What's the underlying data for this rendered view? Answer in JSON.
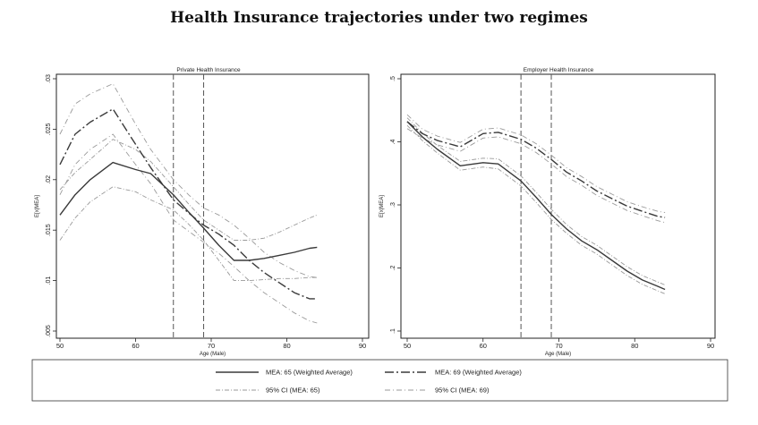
{
  "title": "Health Insurance trajectories under two regimes",
  "colors": {
    "mea65": "#3a3a3a",
    "mea69": "#3a3a3a",
    "ci65": "#9a9a9a",
    "ci69": "#9a9a9a",
    "vline": "#555555"
  },
  "chart_data": [
    {
      "type": "line",
      "title": "Private Health Insurance",
      "xlabel": "Age (Male)",
      "ylabel": "E[x|MEA]",
      "xlim": [
        50,
        90
      ],
      "ylim": [
        0.005,
        0.03
      ],
      "xticks": [
        50,
        60,
        70,
        80,
        90
      ],
      "xtick_labels": [
        "50",
        "60",
        "70",
        "80",
        "90"
      ],
      "yticks": [
        0.005,
        0.01,
        0.015,
        0.02,
        0.025,
        0.03
      ],
      "ytick_labels": [
        ".005",
        ".01",
        ".015",
        ".02",
        ".025",
        ".03"
      ],
      "vlines": [
        65,
        69
      ],
      "x": [
        50,
        52,
        54,
        57,
        60,
        62,
        65,
        67,
        69,
        71,
        73,
        75,
        77,
        79,
        81,
        83,
        84
      ],
      "series": [
        {
          "name": "MEA: 65 (Weighted Average)",
          "role": "mea65",
          "values": [
            0.0165,
            0.0185,
            0.02,
            0.0217,
            0.021,
            0.0206,
            0.0185,
            0.0168,
            0.0152,
            0.0135,
            0.012,
            0.012,
            0.0122,
            0.0125,
            0.0128,
            0.0132,
            0.0133
          ]
        },
        {
          "name": "MEA: 69 (Weighted Average)",
          "role": "mea69",
          "values": [
            0.0215,
            0.0245,
            0.0257,
            0.027,
            0.0235,
            0.0212,
            0.018,
            0.0167,
            0.0155,
            0.0146,
            0.0135,
            0.012,
            0.0108,
            0.0098,
            0.0088,
            0.0082,
            0.0082
          ]
        },
        {
          "name": "95% CI (MEA: 65)",
          "role": "ci65",
          "values": [
            0.019,
            0.0207,
            0.022,
            0.024,
            0.023,
            0.0218,
            0.0193,
            0.0176,
            0.016,
            0.015,
            0.014,
            0.014,
            0.0142,
            0.0148,
            0.0155,
            0.0162,
            0.0165
          ]
        },
        {
          "name": "95% CI (MEA: 65)",
          "role": "ci65",
          "values": [
            0.014,
            0.0162,
            0.0178,
            0.0193,
            0.0188,
            0.018,
            0.017,
            0.0156,
            0.014,
            0.012,
            0.01,
            0.01,
            0.0101,
            0.0102,
            0.0102,
            0.0103,
            0.0103
          ]
        },
        {
          "name": "95% CI (MEA: 69)",
          "role": "ci69",
          "values": [
            0.0245,
            0.0275,
            0.0285,
            0.0295,
            0.0255,
            0.023,
            0.02,
            0.0185,
            0.0172,
            0.0165,
            0.0155,
            0.0142,
            0.0128,
            0.0118,
            0.011,
            0.0104,
            0.0103
          ]
        },
        {
          "name": "95% CI (MEA: 69)",
          "role": "ci69",
          "values": [
            0.0185,
            0.0215,
            0.023,
            0.0245,
            0.0215,
            0.0196,
            0.016,
            0.0149,
            0.0138,
            0.0127,
            0.0114,
            0.01,
            0.0088,
            0.0078,
            0.0068,
            0.006,
            0.0058
          ]
        }
      ]
    },
    {
      "type": "line",
      "title": "Employer Health Insurance",
      "xlabel": "Age (Male)",
      "ylabel": "E[x|MEA]",
      "xlim": [
        50,
        90
      ],
      "ylim": [
        0.1,
        0.5
      ],
      "xticks": [
        50,
        60,
        70,
        80,
        90
      ],
      "xtick_labels": [
        "50",
        "60",
        "70",
        "80",
        "90"
      ],
      "yticks": [
        0.1,
        0.2,
        0.3,
        0.4,
        0.5
      ],
      "ytick_labels": [
        ".1",
        ".2",
        ".3",
        ".4",
        ".5"
      ],
      "vlines": [
        65,
        69
      ],
      "x": [
        50,
        52,
        54,
        57,
        60,
        62,
        65,
        67,
        69,
        71,
        73,
        75,
        77,
        79,
        81,
        83,
        84
      ],
      "series": [
        {
          "name": "MEA: 65 (Weighted Average)",
          "role": "mea65",
          "values": [
            0.432,
            0.408,
            0.388,
            0.362,
            0.367,
            0.365,
            0.338,
            0.312,
            0.285,
            0.262,
            0.243,
            0.229,
            0.212,
            0.195,
            0.181,
            0.171,
            0.166
          ]
        },
        {
          "name": "MEA: 69 (Weighted Average)",
          "role": "mea69",
          "values": [
            0.432,
            0.413,
            0.402,
            0.392,
            0.413,
            0.415,
            0.404,
            0.39,
            0.372,
            0.352,
            0.338,
            0.322,
            0.31,
            0.298,
            0.29,
            0.282,
            0.28
          ]
        },
        {
          "name": "95% CI (MEA: 65)",
          "role": "ci65",
          "values": [
            0.438,
            0.414,
            0.394,
            0.369,
            0.374,
            0.373,
            0.346,
            0.32,
            0.293,
            0.269,
            0.25,
            0.236,
            0.219,
            0.202,
            0.188,
            0.178,
            0.173
          ]
        },
        {
          "name": "95% CI (MEA: 65)",
          "role": "ci65",
          "values": [
            0.426,
            0.402,
            0.382,
            0.355,
            0.36,
            0.357,
            0.33,
            0.304,
            0.277,
            0.255,
            0.236,
            0.222,
            0.205,
            0.188,
            0.174,
            0.164,
            0.159
          ]
        },
        {
          "name": "95% CI (MEA: 69)",
          "role": "ci69",
          "values": [
            0.443,
            0.42,
            0.409,
            0.399,
            0.42,
            0.422,
            0.411,
            0.397,
            0.379,
            0.359,
            0.345,
            0.329,
            0.317,
            0.305,
            0.297,
            0.29,
            0.288
          ]
        },
        {
          "name": "95% CI (MEA: 69)",
          "role": "ci69",
          "values": [
            0.421,
            0.406,
            0.395,
            0.385,
            0.406,
            0.408,
            0.397,
            0.383,
            0.365,
            0.345,
            0.331,
            0.315,
            0.303,
            0.291,
            0.283,
            0.275,
            0.272
          ]
        }
      ]
    }
  ],
  "legend": {
    "items": [
      {
        "label": "MEA: 65 (Weighted Average)",
        "role": "mea65"
      },
      {
        "label": "MEA: 69 (Weighted Average)",
        "role": "mea69"
      },
      {
        "label": "95% CI (MEA: 65)",
        "role": "ci65"
      },
      {
        "label": "95% CI (MEA: 69)",
        "role": "ci69"
      }
    ]
  }
}
